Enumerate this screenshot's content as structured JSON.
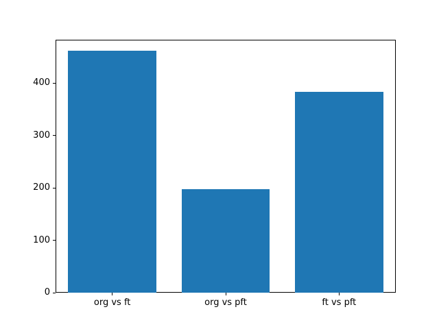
{
  "chart_data": {
    "type": "bar",
    "title": "",
    "xlabel": "",
    "ylabel": "",
    "categories": [
      "org vs ft",
      "org vs pft",
      "ft vs pft"
    ],
    "values": [
      462,
      198,
      384
    ],
    "yticks": [
      0,
      100,
      200,
      300,
      400
    ],
    "ylim": [
      0,
      483
    ],
    "bar_color": "#1f77b4",
    "frame_color": "#000000",
    "background_color": "#ffffff",
    "grid": false,
    "legend": null
  }
}
